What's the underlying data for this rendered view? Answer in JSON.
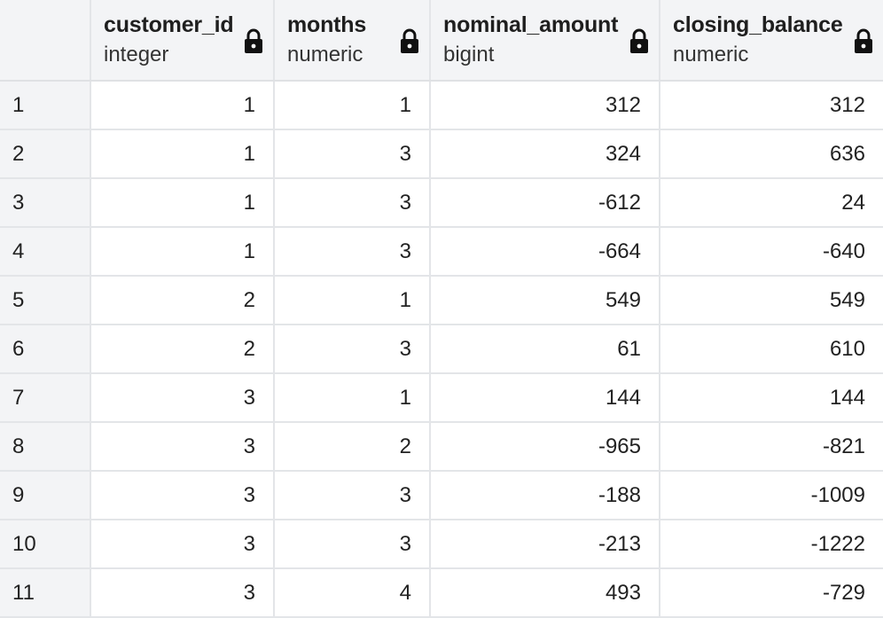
{
  "columns": [
    {
      "name": "customer_id",
      "type": "integer",
      "icon": "lock-icon"
    },
    {
      "name": "months",
      "type": "numeric",
      "icon": "lock-icon"
    },
    {
      "name": "nominal_amount",
      "type": "bigint",
      "icon": "lock-icon"
    },
    {
      "name": "closing_balance",
      "type": "numeric",
      "icon": "lock-icon"
    }
  ],
  "rows": [
    {
      "index": "1",
      "cells": [
        "1",
        "1",
        "312",
        "312"
      ]
    },
    {
      "index": "2",
      "cells": [
        "1",
        "3",
        "324",
        "636"
      ]
    },
    {
      "index": "3",
      "cells": [
        "1",
        "3",
        "-612",
        "24"
      ]
    },
    {
      "index": "4",
      "cells": [
        "1",
        "3",
        "-664",
        "-640"
      ]
    },
    {
      "index": "5",
      "cells": [
        "2",
        "1",
        "549",
        "549"
      ]
    },
    {
      "index": "6",
      "cells": [
        "2",
        "3",
        "61",
        "610"
      ]
    },
    {
      "index": "7",
      "cells": [
        "3",
        "1",
        "144",
        "144"
      ]
    },
    {
      "index": "8",
      "cells": [
        "3",
        "2",
        "-965",
        "-821"
      ]
    },
    {
      "index": "9",
      "cells": [
        "3",
        "3",
        "-188",
        "-1009"
      ]
    },
    {
      "index": "10",
      "cells": [
        "3",
        "3",
        "-213",
        "-1222"
      ]
    },
    {
      "index": "11",
      "cells": [
        "3",
        "4",
        "493",
        "-729"
      ]
    }
  ],
  "colors": {
    "header_bg": "#f3f4f6",
    "grid_line": "#e3e5e8",
    "text": "#222222"
  }
}
